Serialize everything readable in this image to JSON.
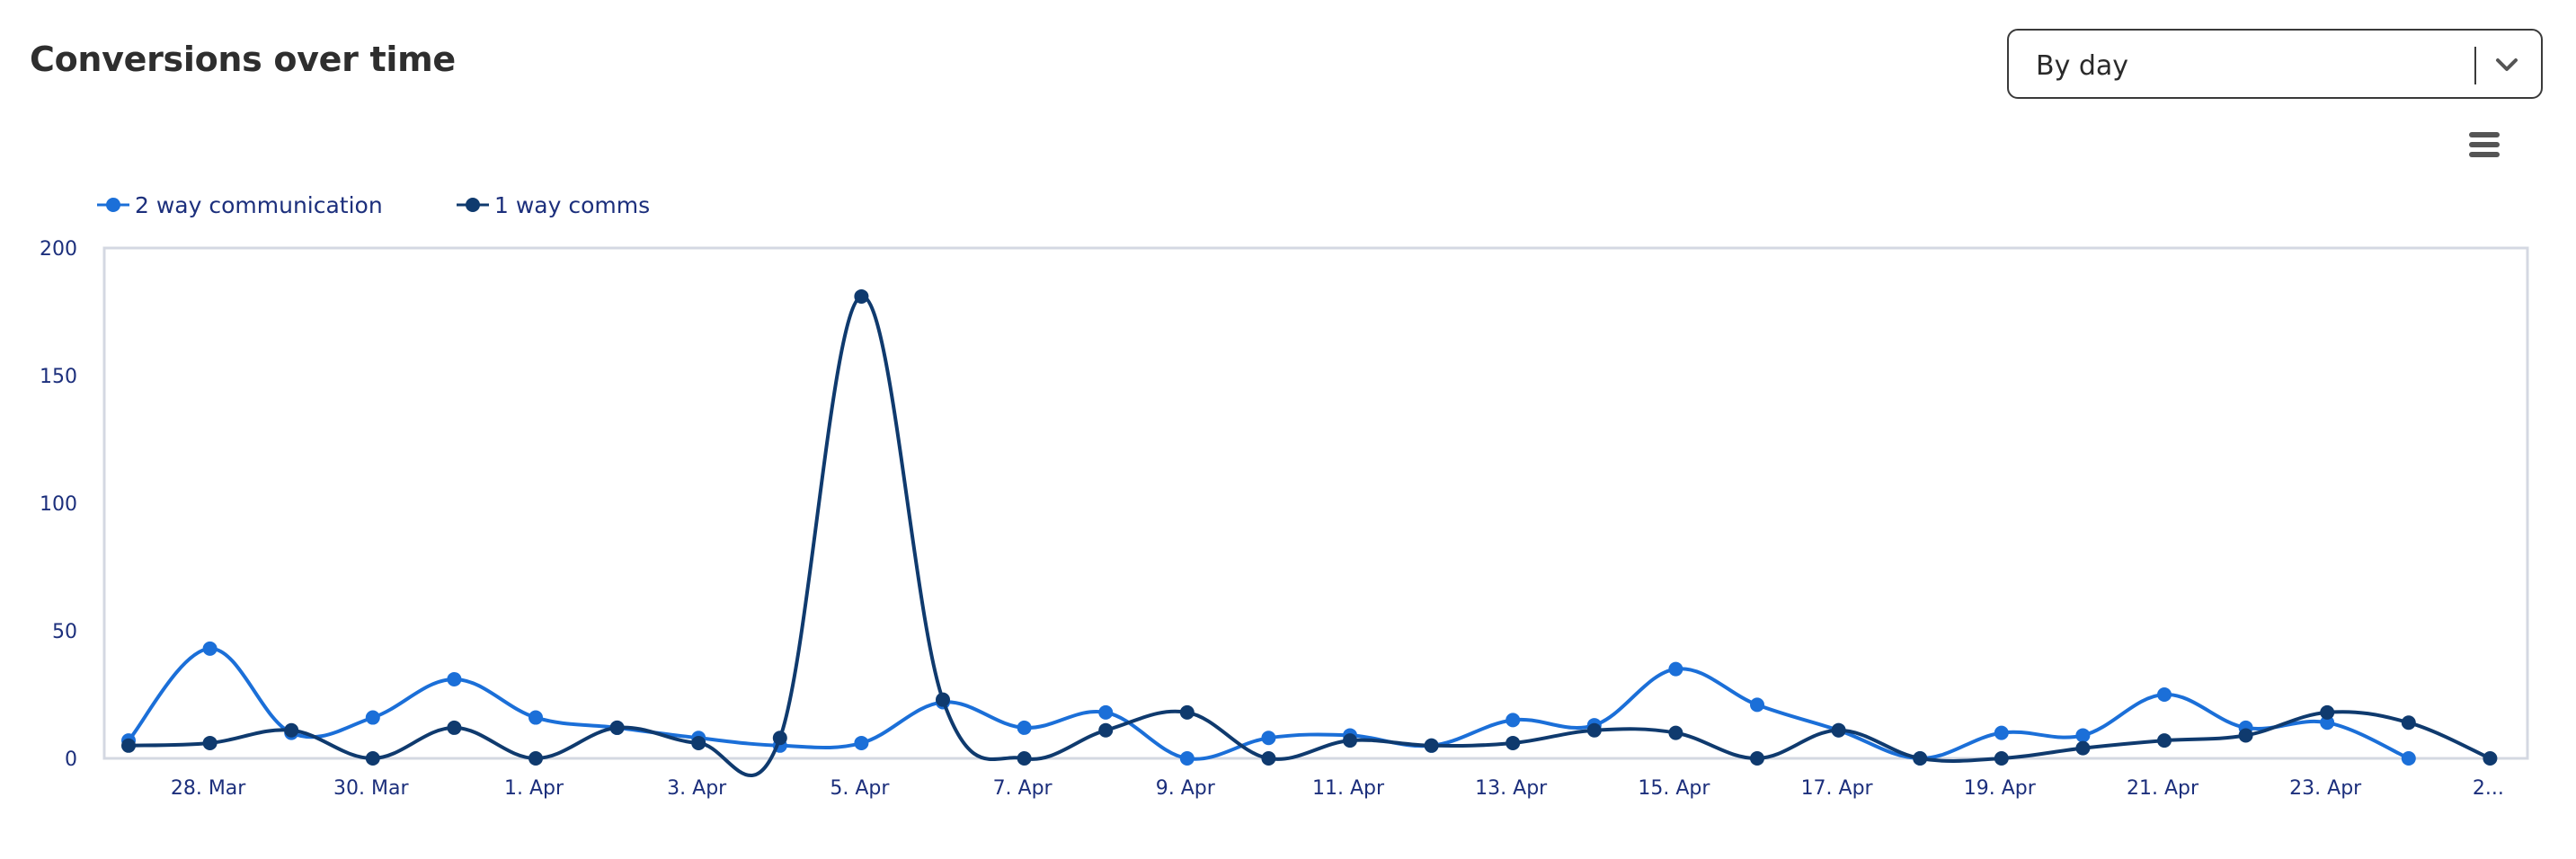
{
  "header": {
    "title": "Conversions over time",
    "granularity_select": {
      "value": "By day"
    }
  },
  "icons": {
    "select_toggle": "chevron-down-icon",
    "chart_menu": "hamburger-menu-icon"
  },
  "chart_data": {
    "type": "line",
    "title": "",
    "xlabel": "",
    "ylabel": "",
    "ylim": [
      0,
      200
    ],
    "y_ticks": [
      "0",
      "50",
      "100",
      "150",
      "200"
    ],
    "x_tick_labels": [
      "28. Mar",
      "30. Mar",
      "1. Apr",
      "3. Apr",
      "5. Apr",
      "7. Apr",
      "9. Apr",
      "11. Apr",
      "13. Apr",
      "15. Apr",
      "17. Apr",
      "19. Apr",
      "21. Apr",
      "23. Apr",
      "2..."
    ],
    "x": [
      "27. Mar",
      "28. Mar",
      "29. Mar",
      "30. Mar",
      "31. Mar",
      "1. Apr",
      "2. Apr",
      "3. Apr",
      "4. Apr",
      "5. Apr",
      "6. Apr",
      "7. Apr",
      "8. Apr",
      "9. Apr",
      "10. Apr",
      "11. Apr",
      "12. Apr",
      "13. Apr",
      "14. Apr",
      "15. Apr",
      "16. Apr",
      "17. Apr",
      "18. Apr",
      "19. Apr",
      "20. Apr",
      "21. Apr",
      "22. Apr",
      "23. Apr",
      "24. Apr",
      "25. Apr"
    ],
    "series": [
      {
        "name": "2 way communication",
        "color": "#1b6fd8",
        "values": [
          7,
          43,
          10,
          16,
          31,
          16,
          12,
          8,
          5,
          6,
          22,
          12,
          18,
          0,
          8,
          9,
          5,
          15,
          13,
          35,
          21,
          11,
          0,
          10,
          9,
          25,
          12,
          14,
          0,
          null
        ]
      },
      {
        "name": "1 way comms",
        "color": "#0f3a6e",
        "values": [
          5,
          6,
          11,
          0,
          12,
          0,
          12,
          6,
          8,
          181,
          23,
          0,
          11,
          18,
          0,
          7,
          5,
          6,
          11,
          10,
          0,
          11,
          0,
          0,
          4,
          7,
          9,
          18,
          14,
          0
        ]
      }
    ],
    "grid": false,
    "legend_position": "top-left"
  }
}
